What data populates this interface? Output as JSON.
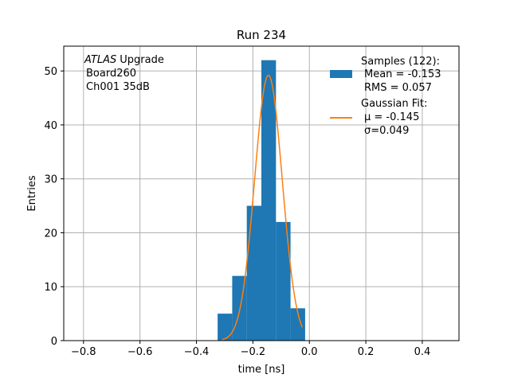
{
  "chart_data": {
    "type": "bar",
    "title": "Run 234",
    "xlabel": "time [ns]",
    "ylabel": "Entries",
    "xlim": [
      -0.87,
      0.53
    ],
    "ylim": [
      0,
      54.6
    ],
    "grid": true,
    "x_ticks": [
      -0.8,
      -0.6,
      -0.4,
      -0.2,
      0.0,
      0.2,
      0.4
    ],
    "x_tick_labels": [
      "−0.8",
      "−0.6",
      "−0.4",
      "−0.2",
      "0.0",
      "0.2",
      "0.4"
    ],
    "y_ticks": [
      0,
      10,
      20,
      30,
      40,
      50
    ],
    "y_tick_labels": [
      "0",
      "10",
      "20",
      "30",
      "40",
      "50"
    ],
    "histogram": {
      "name": "Samples (122):",
      "color": "#1f77b4",
      "bins": [
        {
          "x0": -0.325,
          "x1": -0.2733,
          "count": 5
        },
        {
          "x0": -0.2733,
          "x1": -0.2217,
          "count": 12
        },
        {
          "x0": -0.2217,
          "x1": -0.17,
          "count": 25
        },
        {
          "x0": -0.17,
          "x1": -0.1183,
          "count": 52
        },
        {
          "x0": -0.1183,
          "x1": -0.0667,
          "count": 22
        },
        {
          "x0": -0.0667,
          "x1": -0.015,
          "count": 6
        }
      ]
    },
    "fit": {
      "name": "Gaussian Fit:",
      "color": "#ff7f0e",
      "mu": -0.145,
      "sigma": 0.049,
      "amplitude": 49.2,
      "x_range": [
        -0.31,
        -0.025
      ]
    },
    "annotation_lines": [
      "Upgrade",
      "Board260",
      "Ch001 35dB"
    ],
    "annotation_italic": "ATLAS",
    "legend": {
      "position": "upper right",
      "entries": [
        {
          "label": "Samples (122):",
          "detail": [
            "Mean = -0.153",
            "RMS = 0.057"
          ],
          "marker": "patch"
        },
        {
          "label": "Gaussian Fit:",
          "detail": [
            "μ = -0.145",
            "σ=0.049"
          ],
          "marker": "line"
        }
      ]
    }
  }
}
